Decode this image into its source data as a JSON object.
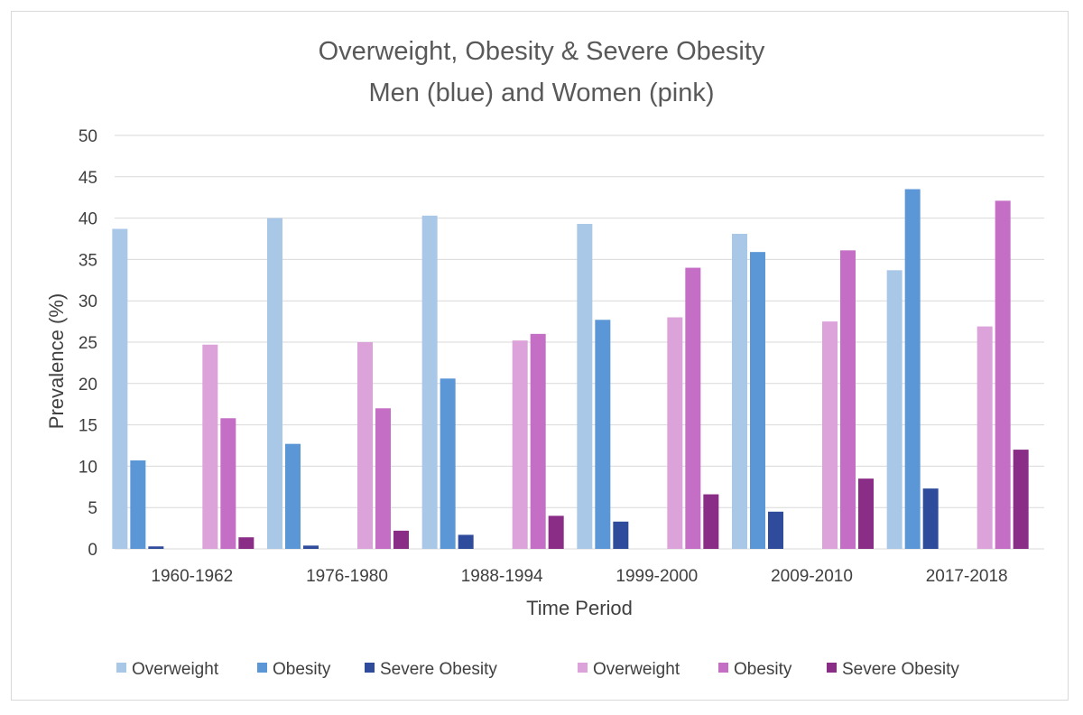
{
  "chart_data": {
    "type": "bar",
    "title": "Overweight, Obesity & Severe Obesity",
    "subtitle": "Men (blue) and Women (pink)",
    "xlabel": "Time Period",
    "ylabel": "Prevalence (%)",
    "ylim": [
      0,
      50
    ],
    "yticks": [
      0,
      5,
      10,
      15,
      20,
      25,
      30,
      35,
      40,
      45,
      50
    ],
    "grid": true,
    "legend_position": "bottom",
    "categories": [
      "1960-1962",
      "1976-1980",
      "1988-1994",
      "1999-2000",
      "2009-2010",
      "2017-2018"
    ],
    "series": [
      {
        "name": "Overweight",
        "color": "#a9c8e8",
        "values": [
          38.7,
          40.0,
          40.3,
          39.3,
          38.1,
          33.7
        ]
      },
      {
        "name": "Obesity",
        "color": "#5b97d6",
        "values": [
          10.7,
          12.7,
          20.6,
          27.7,
          35.9,
          43.5
        ]
      },
      {
        "name": "Severe Obesity",
        "color": "#2e4c9b",
        "values": [
          0.3,
          0.4,
          1.7,
          3.3,
          4.5,
          7.3
        ]
      },
      {
        "name": "Overweight",
        "color": "#dca2da",
        "values": [
          24.7,
          25.0,
          25.2,
          28.0,
          27.5,
          26.9
        ]
      },
      {
        "name": "Obesity",
        "color": "#c56ec5",
        "values": [
          15.8,
          17.0,
          26.0,
          34.0,
          36.1,
          42.1
        ]
      },
      {
        "name": "Severe Obesity",
        "color": "#8a2d86",
        "values": [
          1.4,
          2.2,
          4.0,
          6.6,
          8.5,
          12.0
        ]
      }
    ]
  }
}
